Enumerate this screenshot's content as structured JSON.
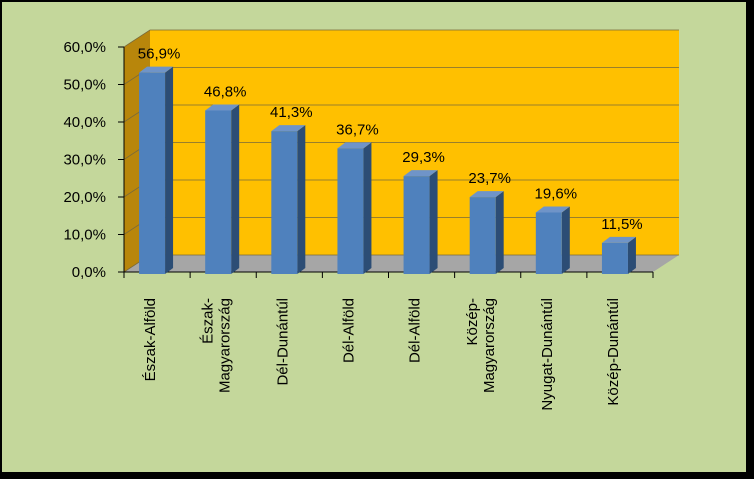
{
  "chart_data": {
    "type": "bar",
    "title": "",
    "xlabel": "",
    "ylabel": "",
    "categories": [
      [
        "Észak-Alföld"
      ],
      [
        "Észak-",
        "Magyarország"
      ],
      [
        "Dél-Dunántúl"
      ],
      [
        "Dél-Alföld"
      ],
      [
        "Dél-Alföld"
      ],
      [
        "Közép-",
        "Magyarország"
      ],
      [
        "Nyugat-Dunántúl"
      ],
      [
        "Közép-Dunántúl"
      ]
    ],
    "values": [
      56.9,
      46.8,
      41.3,
      36.7,
      29.3,
      23.7,
      19.6,
      11.5
    ],
    "data_labels": [
      "56,9%",
      "46,8%",
      "41,3%",
      "36,7%",
      "29,3%",
      "23,7%",
      "19,6%",
      "11,5%"
    ],
    "ylim": [
      0,
      60
    ],
    "yticks": [
      0,
      10,
      20,
      30,
      40,
      50,
      60
    ],
    "ytick_labels": [
      "0,0%",
      "10,0%",
      "20,0%",
      "30,0%",
      "40,0%",
      "50,0%",
      "60,0%"
    ],
    "grid": true,
    "legend": "none",
    "colors": {
      "background": "#c4d79b",
      "wall": "#ffc000",
      "wall_side": "#b8860b",
      "floor": "#a6a6a6",
      "bar_front": "#4f81bd",
      "bar_side": "#2c4d75",
      "bar_top": "#6f94c8",
      "grid": "#7a6a3a",
      "frame": "#000000"
    }
  }
}
